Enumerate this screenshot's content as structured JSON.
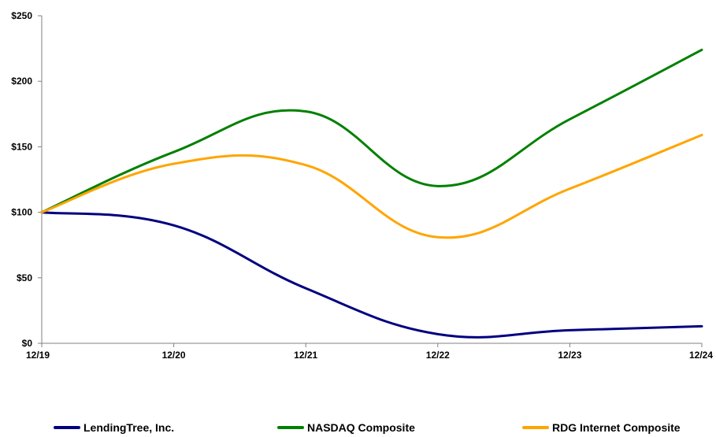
{
  "chart_data": {
    "type": "line",
    "categories": [
      "12/19",
      "12/20",
      "12/21",
      "12/22",
      "12/23",
      "12/24"
    ],
    "y_ticks": [
      "$0",
      "$50",
      "$100",
      "$150",
      "$200",
      "$250"
    ],
    "ylim": [
      0,
      250
    ],
    "grid": false,
    "legend_position": "bottom",
    "series": [
      {
        "name": "LendingTree, Inc.",
        "color": "#000080",
        "values": [
          100,
          90,
          42,
          7,
          10,
          13
        ]
      },
      {
        "name": "NASDAQ Composite",
        "color": "#008000",
        "values": [
          100,
          146,
          177,
          120,
          171,
          224
        ]
      },
      {
        "name": "RDG Internet Composite",
        "color": "#FFA500",
        "values": [
          100,
          137,
          136,
          81,
          118,
          159
        ]
      }
    ]
  }
}
